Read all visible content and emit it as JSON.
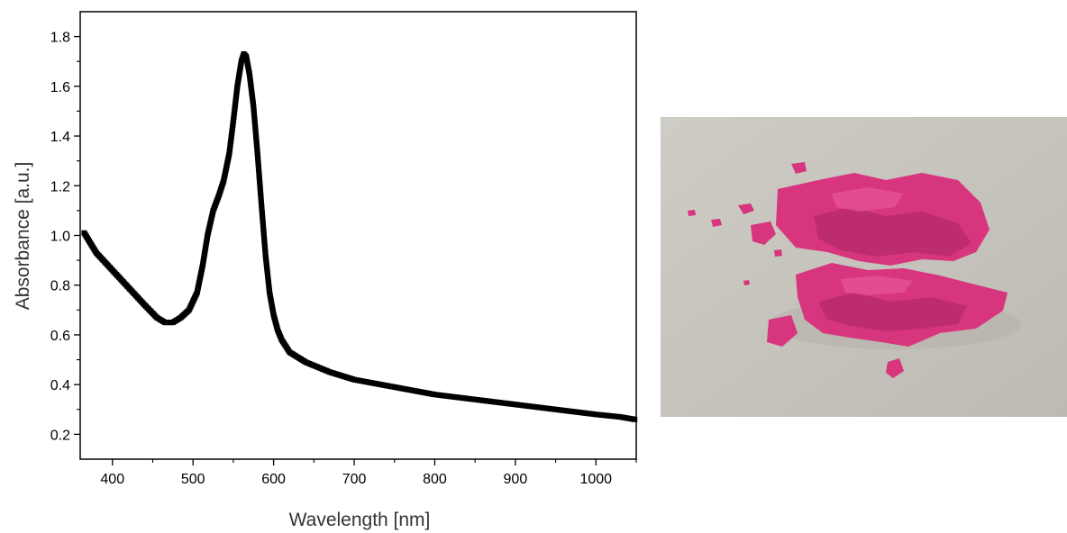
{
  "chart_data": {
    "type": "scatter",
    "title": "",
    "xlabel": "Wavelength [nm]",
    "ylabel": "Absorbance [a.u.]",
    "xlim": [
      360,
      1050
    ],
    "ylim": [
      0.1,
      1.9
    ],
    "xticks": [
      400,
      500,
      600,
      700,
      800,
      900,
      1000
    ],
    "yticks": [
      0.2,
      0.4,
      0.6,
      0.8,
      1.0,
      1.2,
      1.4,
      1.6,
      1.8
    ],
    "xtick_labels": [
      "400",
      "500",
      "600",
      "700",
      "800",
      "900",
      "1000"
    ],
    "ytick_labels": [
      "0.2",
      "0.4",
      "0.6",
      "0.8",
      "1.0",
      "1.2",
      "1.4",
      "1.6",
      "1.8"
    ],
    "grid": false,
    "legend": "none",
    "marker": "square",
    "color": "#000000",
    "series": [
      {
        "x": [
          365,
          380,
          400,
          420,
          440,
          455,
          465,
          475,
          485,
          495,
          505,
          512,
          518,
          525,
          532,
          538,
          545,
          550,
          555,
          560,
          563,
          566,
          570,
          575,
          580,
          585,
          590,
          595,
          600,
          605,
          610,
          620,
          640,
          670,
          700,
          750,
          800,
          850,
          900,
          950,
          1000,
          1030,
          1048
        ],
        "y": [
          1.01,
          0.93,
          0.86,
          0.79,
          0.72,
          0.67,
          0.65,
          0.65,
          0.67,
          0.7,
          0.77,
          0.88,
          1.0,
          1.1,
          1.16,
          1.22,
          1.33,
          1.46,
          1.6,
          1.7,
          1.73,
          1.72,
          1.65,
          1.52,
          1.33,
          1.12,
          0.92,
          0.77,
          0.68,
          0.62,
          0.58,
          0.53,
          0.49,
          0.45,
          0.42,
          0.39,
          0.36,
          0.34,
          0.32,
          0.3,
          0.28,
          0.27,
          0.26
        ]
      }
    ]
  },
  "photo": {
    "background": "#c9c6bf",
    "powder_color": "#d8357f",
    "shadow_color": "#a8245f",
    "highlight_color": "#e8569a"
  }
}
